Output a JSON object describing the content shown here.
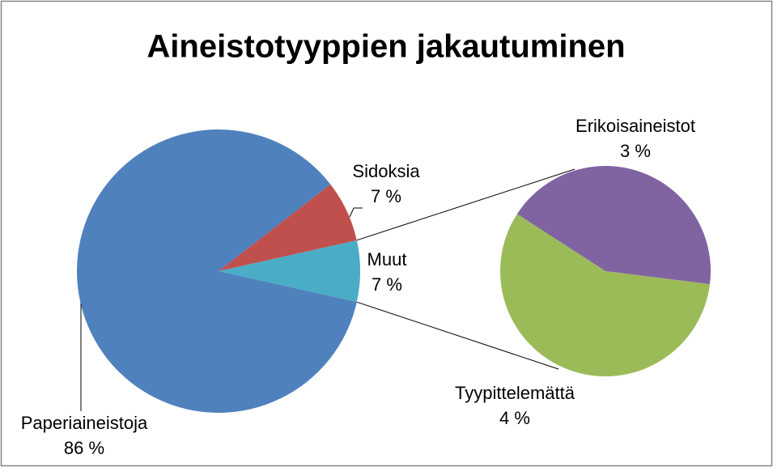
{
  "chart_data": {
    "type": "pie",
    "title": "Aineistotyyppien jakautuminen",
    "categories": [
      "Paperiaineistoja",
      "Sidoksia",
      "Muut"
    ],
    "values": [
      86,
      7,
      7
    ],
    "value_labels": [
      "86 %",
      "7 %",
      "7 %"
    ],
    "colors": [
      "#4F81BD",
      "#C0504D",
      "#4BACC6"
    ],
    "secondary": {
      "categories": [
        "Erikoisaineistot",
        "Tyypittelemättä"
      ],
      "values": [
        3,
        4
      ],
      "value_labels": [
        "3 %",
        "4 %"
      ],
      "colors": [
        "#8064A2",
        "#9BBB59"
      ]
    }
  }
}
